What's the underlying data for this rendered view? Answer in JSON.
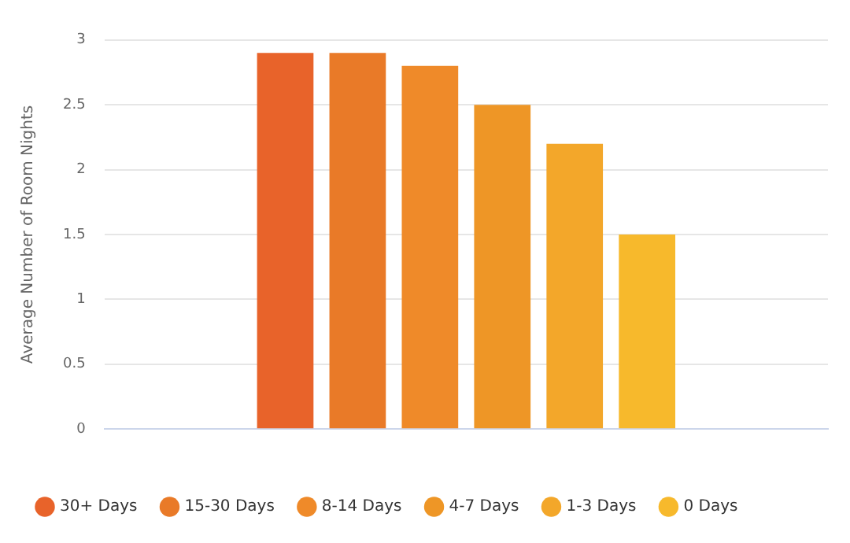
{
  "chart_data": {
    "type": "bar",
    "ylabel": "Average Number of Room Nights",
    "categories": [
      null
    ],
    "series": [
      {
        "name": "30+ Days",
        "color": "#e8632a",
        "values": [
          2.9
        ]
      },
      {
        "name": "15-30 Days",
        "color": "#e97a28",
        "values": [
          2.9
        ]
      },
      {
        "name": "8-14 Days",
        "color": "#ef8a29",
        "values": [
          2.8
        ]
      },
      {
        "name": "4-7 Days",
        "color": "#ee9626",
        "values": [
          2.5
        ]
      },
      {
        "name": "1-3 Days",
        "color": "#f3a72a",
        "values": [
          2.2
        ]
      },
      {
        "name": "0 Days",
        "color": "#f7b92c",
        "values": [
          1.5
        ]
      }
    ],
    "ylim": [
      0,
      3
    ],
    "yticks": [
      0,
      0.5,
      1,
      1.5,
      2,
      2.5,
      3
    ],
    "grid": "y",
    "legend": "bottom"
  }
}
